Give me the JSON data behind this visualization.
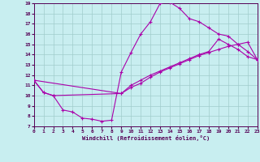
{
  "background_color": "#c8eef0",
  "line_color": "#aa00aa",
  "grid_color": "#a0cccc",
  "xlabel": "Windchill (Refroidissement éolien,°C)",
  "xlim": [
    0,
    23
  ],
  "ylim": [
    7,
    19
  ],
  "xtick_labels": [
    "0",
    "1",
    "2",
    "3",
    "4",
    "5",
    "6",
    "7",
    "8",
    "9",
    "10",
    "11",
    "12",
    "13",
    "14",
    "15",
    "16",
    "17",
    "18",
    "19",
    "20",
    "21",
    "22",
    "23"
  ],
  "ytick_labels": [
    "7",
    "8",
    "9",
    "10",
    "11",
    "12",
    "13",
    "14",
    "15",
    "16",
    "17",
    "18",
    "19"
  ],
  "line1_x": [
    0,
    1,
    2,
    3,
    4,
    5,
    6,
    7,
    8,
    9,
    10,
    11,
    12,
    13,
    14,
    15,
    16,
    17,
    18,
    19,
    20,
    21,
    22,
    23
  ],
  "line1_y": [
    11.5,
    10.3,
    10.0,
    8.6,
    8.4,
    7.8,
    7.7,
    7.5,
    7.6,
    12.3,
    14.2,
    16.0,
    17.2,
    19.0,
    19.1,
    18.5,
    17.5,
    17.2,
    16.6,
    16.0,
    15.8,
    15.0,
    14.3,
    13.5
  ],
  "line2_x": [
    0,
    1,
    2,
    9,
    10,
    11,
    12,
    13,
    14,
    15,
    16,
    17,
    18,
    19,
    20,
    21,
    22,
    23
  ],
  "line2_y": [
    11.5,
    10.3,
    10.0,
    10.2,
    10.8,
    11.2,
    11.8,
    12.3,
    12.7,
    13.1,
    13.5,
    13.9,
    14.2,
    14.5,
    14.8,
    15.0,
    15.2,
    13.5
  ],
  "line3_x": [
    0,
    9,
    10,
    11,
    12,
    13,
    14,
    15,
    16,
    17,
    18,
    19,
    20,
    21,
    22,
    23
  ],
  "line3_y": [
    11.5,
    10.2,
    11.0,
    11.5,
    12.0,
    12.4,
    12.8,
    13.2,
    13.6,
    14.0,
    14.3,
    15.5,
    15.0,
    14.5,
    13.8,
    13.5
  ]
}
